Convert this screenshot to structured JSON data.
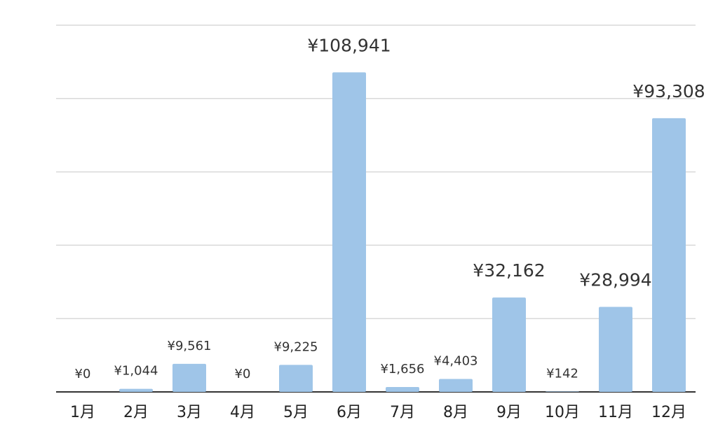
{
  "chart_data": {
    "type": "bar",
    "title": "",
    "xlabel": "",
    "ylabel": "",
    "categories": [
      "1月",
      "2月",
      "3月",
      "4月",
      "5月",
      "6月",
      "7月",
      "8月",
      "9月",
      "10月",
      "11月",
      "12月"
    ],
    "values": [
      0,
      1044,
      9561,
      0,
      9225,
      108941,
      1656,
      4403,
      32162,
      142,
      28994,
      93308
    ],
    "value_labels": [
      "¥0",
      "¥1,044",
      "¥9,561",
      "¥0",
      "¥9,225",
      "¥108,941",
      "¥1,656",
      "¥4,403",
      "¥32,162",
      "¥142",
      "¥28,994",
      "¥93,308"
    ],
    "ylim": [
      0,
      125000
    ],
    "ytick_step": 25000,
    "y_axis_labels_shown": false,
    "grid": true,
    "legend": "none",
    "colors": {
      "bar": "#9fc5e8",
      "grid": "#d9d9d9",
      "baseline": "#333333",
      "text": "#222222"
    }
  }
}
